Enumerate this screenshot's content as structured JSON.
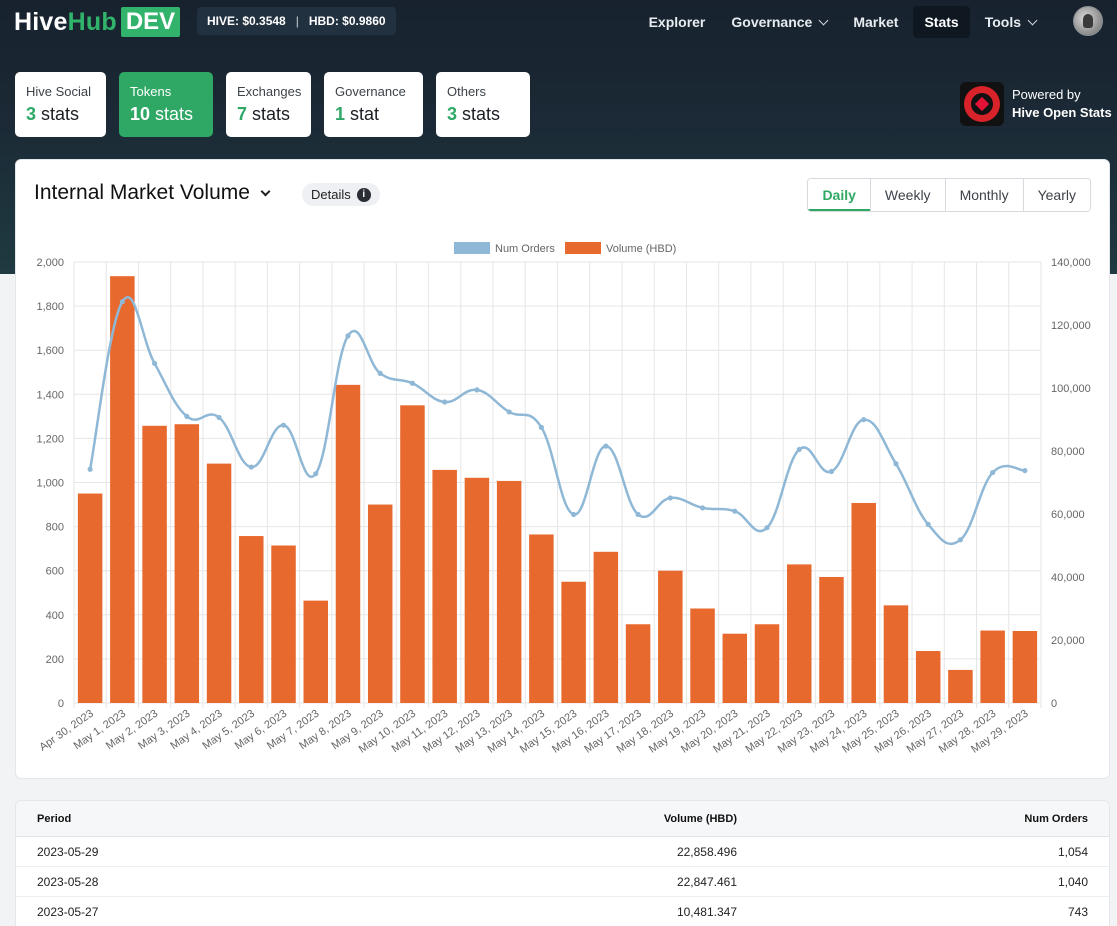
{
  "brand": {
    "logo_a": "Hive",
    "logo_b": "Hub",
    "logo_tag": "DEV"
  },
  "prices": {
    "hive": "HIVE: $0.3548",
    "separator": "|",
    "hbd": "HBD: $0.9860"
  },
  "nav": [
    {
      "label": "Explorer",
      "dropdown": false,
      "active": false
    },
    {
      "label": "Governance",
      "dropdown": true,
      "active": false
    },
    {
      "label": "Market",
      "dropdown": false,
      "active": false
    },
    {
      "label": "Stats",
      "dropdown": false,
      "active": true
    },
    {
      "label": "Tools",
      "dropdown": true,
      "active": false
    }
  ],
  "categories": [
    {
      "label": "Hive Social",
      "count": "3",
      "unit": "stats",
      "active": false
    },
    {
      "label": "Tokens",
      "count": "10",
      "unit": "stats",
      "active": true
    },
    {
      "label": "Exchanges",
      "count": "7",
      "unit": "stats",
      "active": false
    },
    {
      "label": "Governance",
      "count": "1",
      "unit": "stat",
      "active": false
    },
    {
      "label": "Others",
      "count": "3",
      "unit": "stats",
      "active": false
    }
  ],
  "powered": {
    "line1": "Powered by",
    "line2": "Hive Open Stats"
  },
  "chart_card": {
    "title": "Internal Market Volume",
    "details_label": "Details",
    "periods": [
      "Daily",
      "Weekly",
      "Monthly",
      "Yearly"
    ],
    "active_period": "Daily"
  },
  "colors": {
    "accent": "#2fa866",
    "bar": "#e8692e",
    "line": "#8fb8d6"
  },
  "chart_data": {
    "type": "bar",
    "categories": [
      "Apr 30, 2023",
      "May 1, 2023",
      "May 2, 2023",
      "May 3, 2023",
      "May 4, 2023",
      "May 5, 2023",
      "May 6, 2023",
      "May 7, 2023",
      "May 8, 2023",
      "May 9, 2023",
      "May 10, 2023",
      "May 11, 2023",
      "May 12, 2023",
      "May 13, 2023",
      "May 14, 2023",
      "May 15, 2023",
      "May 16, 2023",
      "May 17, 2023",
      "May 18, 2023",
      "May 19, 2023",
      "May 20, 2023",
      "May 21, 2023",
      "May 22, 2023",
      "May 23, 2023",
      "May 24, 2023",
      "May 25, 2023",
      "May 26, 2023",
      "May 27, 2023",
      "May 28, 2023",
      "May 29, 2023"
    ],
    "series": [
      {
        "name": "Num Orders",
        "type": "line",
        "axis": "left",
        "color": "#8fb8d6",
        "values": [
          1060,
          1820,
          1540,
          1300,
          1295,
          1070,
          1260,
          1040,
          1665,
          1495,
          1450,
          1365,
          1420,
          1320,
          1250,
          855,
          1165,
          855,
          930,
          885,
          870,
          795,
          1150,
          1050,
          1285,
          1085,
          810,
          740,
          1045,
          1054
        ]
      },
      {
        "name": "Volume (HBD)",
        "type": "bar",
        "axis": "right",
        "color": "#e8692e",
        "values": [
          66500,
          135500,
          88000,
          88500,
          76000,
          53000,
          50000,
          32500,
          101000,
          63000,
          94500,
          74000,
          71500,
          70500,
          53500,
          38500,
          48000,
          25000,
          42000,
          30000,
          22000,
          25000,
          44000,
          40000,
          63500,
          31000,
          16500,
          10500,
          23000,
          22858.496
        ]
      }
    ],
    "left_axis": {
      "min": 0,
      "max": 2000,
      "ticks": [
        "0",
        "200",
        "400",
        "600",
        "800",
        "1,000",
        "1,200",
        "1,400",
        "1,600",
        "1,800",
        "2,000"
      ]
    },
    "right_axis": {
      "min": 0,
      "max": 140000,
      "ticks": [
        "0",
        "20,000",
        "40,000",
        "60,000",
        "80,000",
        "100,000",
        "120,000",
        "140,000"
      ]
    },
    "legend": [
      "Num Orders",
      "Volume (HBD)"
    ],
    "legend_position": "top",
    "grid": true
  },
  "table": {
    "headers": [
      "Period",
      "Volume (HBD)",
      "Num Orders"
    ],
    "rows": [
      [
        "2023-05-29",
        "22,858.496",
        "1,054"
      ],
      [
        "2023-05-28",
        "22,847.461",
        "1,040"
      ],
      [
        "2023-05-27",
        "10,481.347",
        "743"
      ]
    ]
  }
}
